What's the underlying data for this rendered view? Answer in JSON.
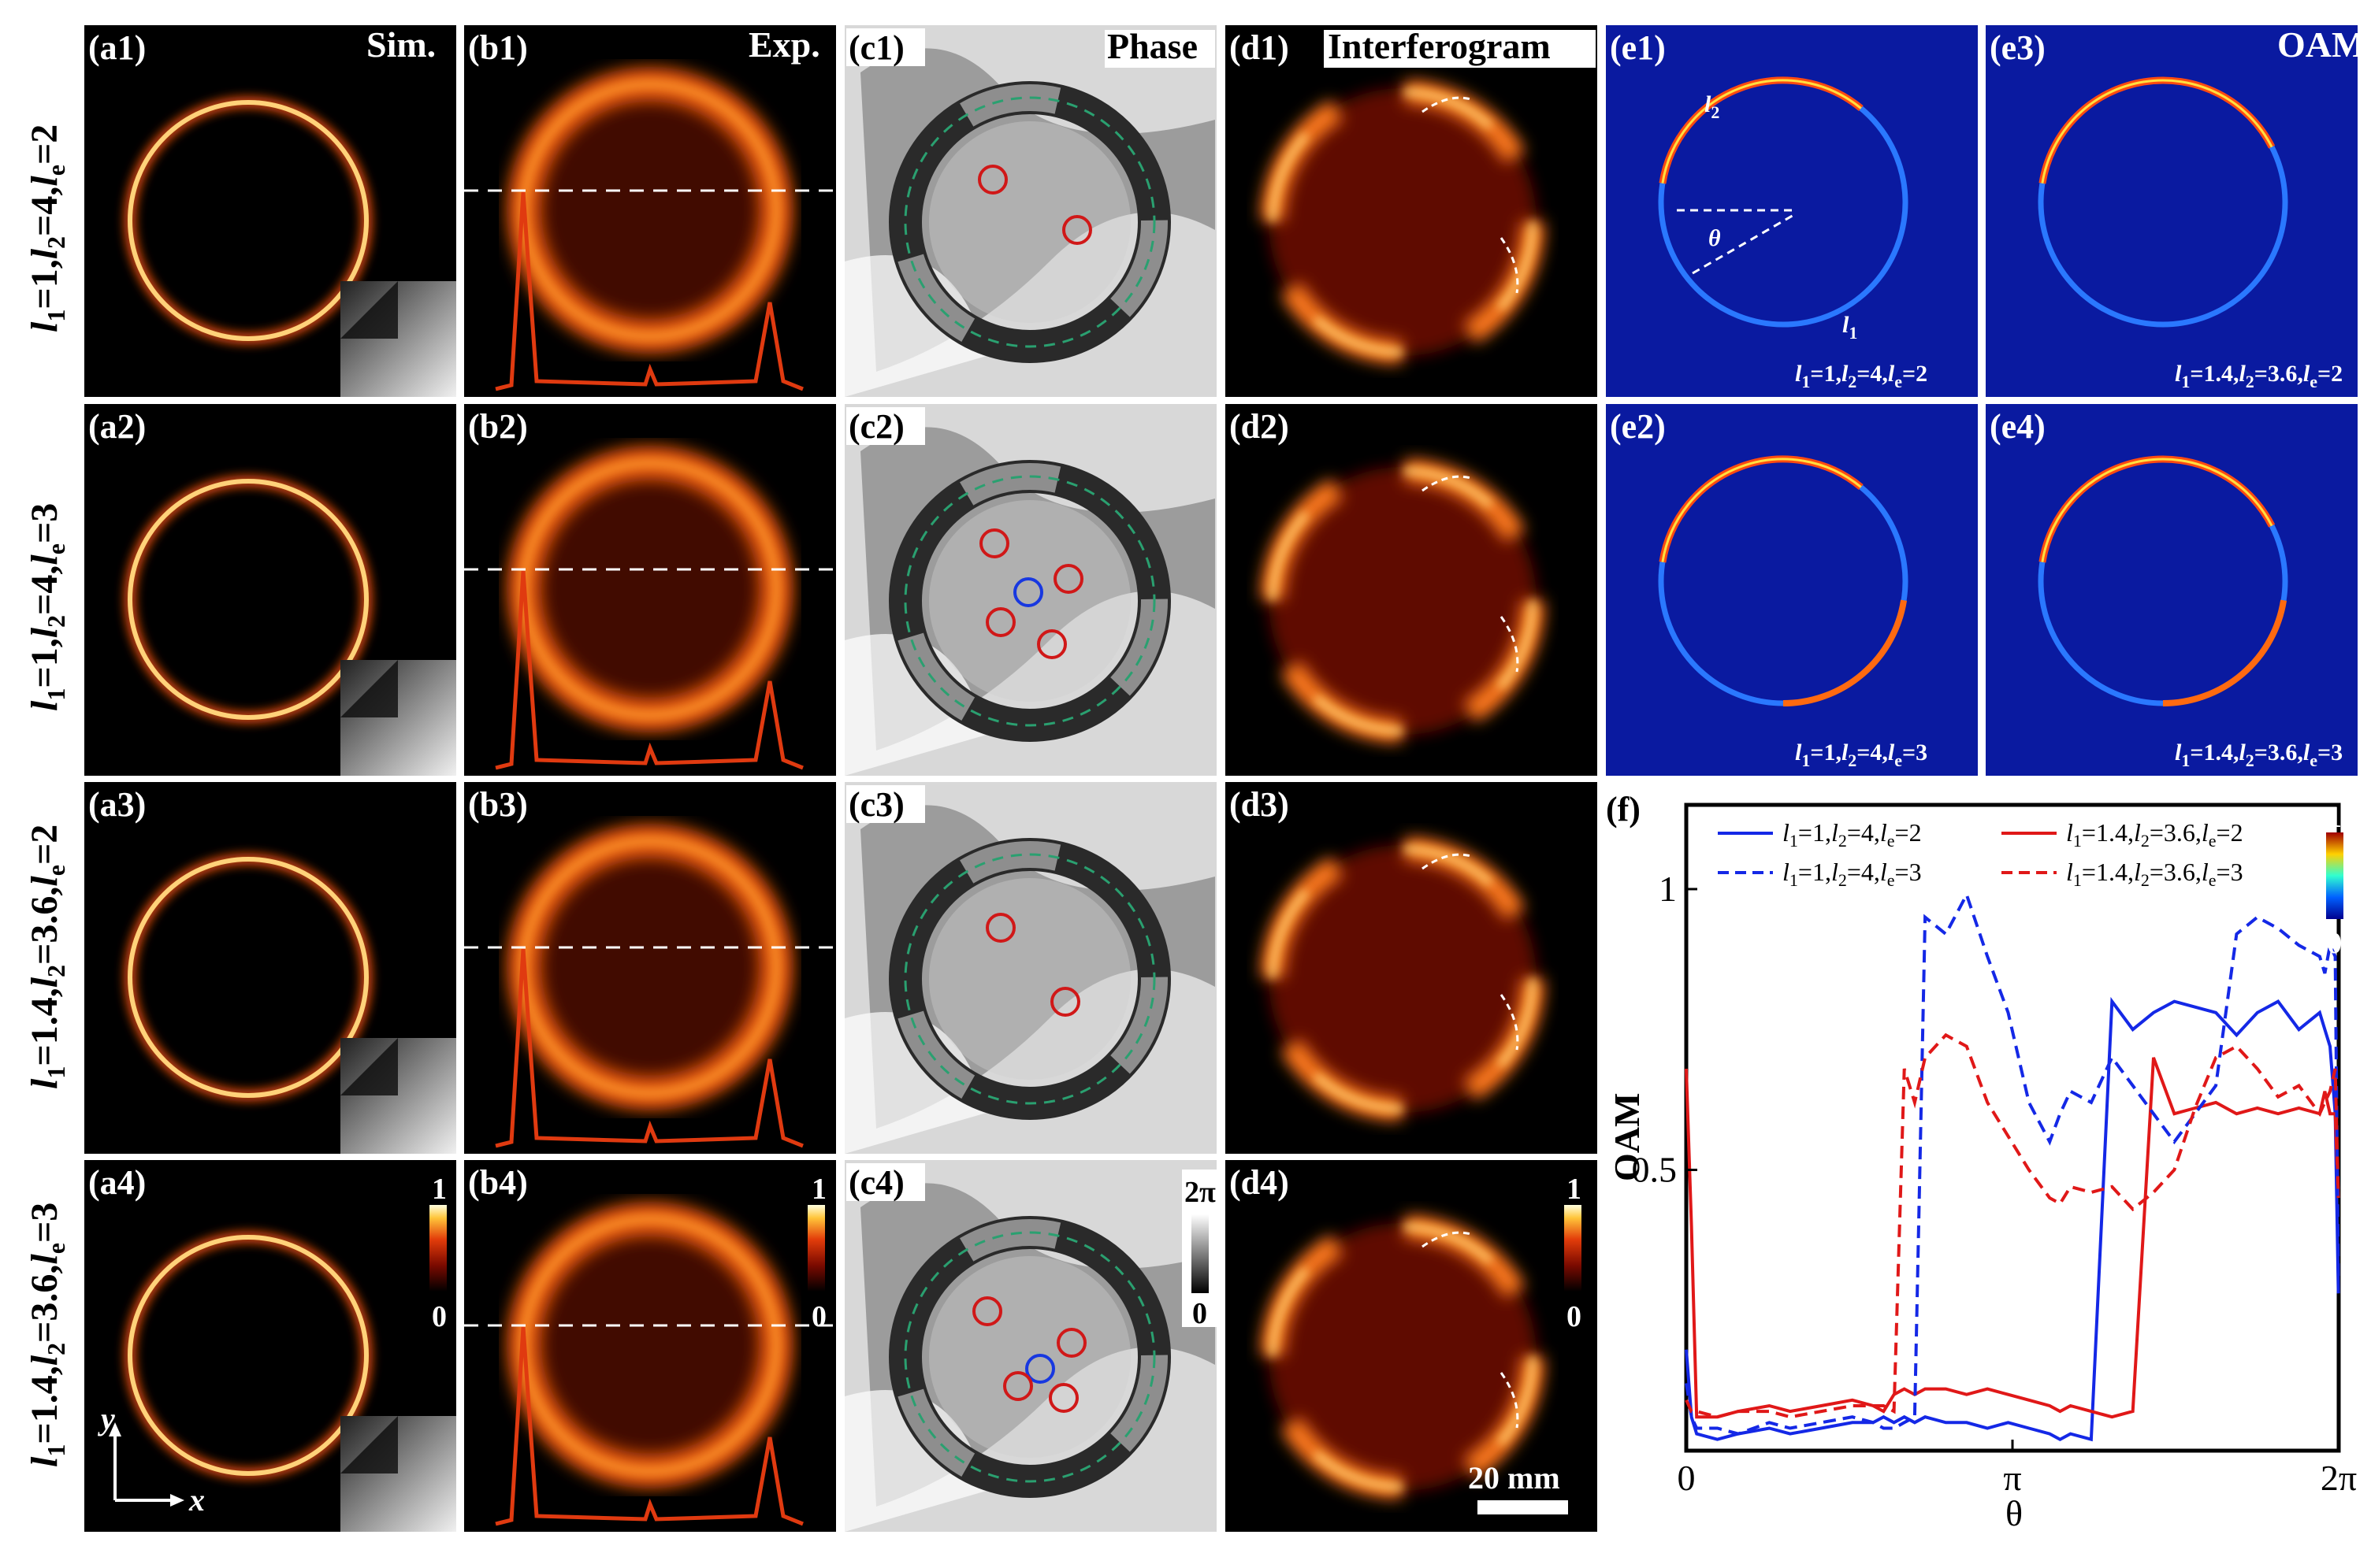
{
  "figure": {
    "column_headers": [
      "Sim.",
      "Exp.",
      "Phase",
      "Interferogram",
      "OAM"
    ],
    "row_labels": [
      {
        "l1": "1",
        "l2": "4",
        "le": "2"
      },
      {
        "l1": "1",
        "l2": "4",
        "le": "3"
      },
      {
        "l1": "1.4",
        "l2": "3.6",
        "le": "2"
      },
      {
        "l1": "1.4",
        "l2": "3.6",
        "le": "3"
      }
    ],
    "panels": {
      "a": [
        "(a1)",
        "(a2)",
        "(a3)",
        "(a4)"
      ],
      "b": [
        "(b1)",
        "(b2)",
        "(b3)",
        "(b4)"
      ],
      "c": [
        "(c1)",
        "(c2)",
        "(c3)",
        "(c4)"
      ],
      "d": [
        "(d1)",
        "(d2)",
        "(d3)",
        "(d4)"
      ],
      "e": [
        "(e1)",
        "(e3)",
        "(e2)",
        "(e4)"
      ],
      "f": "(f)"
    },
    "e_captions": [
      {
        "l1": "1",
        "l2": "4",
        "le": "2"
      },
      {
        "l1": "1.4",
        "l2": "3.6",
        "le": "2"
      },
      {
        "l1": "1",
        "l2": "4",
        "le": "3"
      },
      {
        "l1": "1.4",
        "l2": "3.6",
        "le": "3"
      }
    ],
    "e1_annotations": {
      "l2": "l2",
      "l1": "l1",
      "theta": "θ"
    },
    "colorbars": {
      "intensity": {
        "max": "1",
        "min": "0"
      },
      "phase": {
        "max": "2π",
        "min": "0"
      }
    },
    "scale_bar": "20 mm",
    "axes_glyph": {
      "x": "x",
      "y": "y"
    },
    "colors": {
      "blue_curve": "#1428e6",
      "red_curve": "#e01818",
      "phase_circle_red": "#d01818",
      "phase_circle_blue": "#1838e0",
      "oam_background": "#0a1aa0",
      "dash_green": "#2aa070"
    }
  },
  "chart_data": {
    "type": "line",
    "title": "",
    "xlabel": "θ",
    "ylabel": "OAM",
    "xlim": [
      0,
      6.2832
    ],
    "ylim": [
      0,
      1.15
    ],
    "xticks": [
      "0",
      "π",
      "2π"
    ],
    "yticks": [
      "0.5",
      "1"
    ],
    "legend_position": "top",
    "x": [
      0,
      0.05,
      0.1,
      0.3,
      0.5,
      0.8,
      1.0,
      1.3,
      1.6,
      1.8,
      1.9,
      2.0,
      2.1,
      2.2,
      2.3,
      2.5,
      2.7,
      2.9,
      3.1,
      3.3,
      3.5,
      3.6,
      3.7,
      3.9,
      4.1,
      4.3,
      4.5,
      4.7,
      4.9,
      5.1,
      5.3,
      5.5,
      5.7,
      5.9,
      6.1,
      6.15,
      6.2,
      6.25,
      6.28
    ],
    "series": [
      {
        "name": "l1=1,l2=4,le=2",
        "style": "solid",
        "color": "#1428e6",
        "values": [
          0.18,
          0.06,
          0.03,
          0.02,
          0.03,
          0.04,
          0.03,
          0.04,
          0.05,
          0.05,
          0.06,
          0.05,
          0.06,
          0.05,
          0.06,
          0.05,
          0.05,
          0.04,
          0.05,
          0.04,
          0.03,
          0.02,
          0.03,
          0.02,
          0.8,
          0.75,
          0.78,
          0.8,
          0.79,
          0.78,
          0.74,
          0.78,
          0.8,
          0.75,
          0.78,
          0.75,
          0.72,
          0.6,
          0.28
        ]
      },
      {
        "name": "l1=1.4,l2=3.6,le=2",
        "style": "solid",
        "color": "#e01818",
        "values": [
          0.68,
          0.4,
          0.06,
          0.06,
          0.07,
          0.08,
          0.07,
          0.08,
          0.09,
          0.08,
          0.07,
          0.1,
          0.11,
          0.1,
          0.11,
          0.11,
          0.1,
          0.11,
          0.1,
          0.09,
          0.08,
          0.07,
          0.08,
          0.07,
          0.06,
          0.07,
          0.7,
          0.6,
          0.61,
          0.62,
          0.6,
          0.61,
          0.6,
          0.61,
          0.6,
          0.64,
          0.6,
          0.6,
          0.45
        ]
      },
      {
        "name": "l1=1,l2=4,le=3",
        "style": "dashed",
        "color": "#1428e6",
        "values": [
          0.12,
          0.06,
          0.04,
          0.04,
          0.03,
          0.05,
          0.04,
          0.05,
          0.06,
          0.05,
          0.04,
          0.04,
          0.05,
          0.06,
          0.95,
          0.92,
          0.99,
          0.88,
          0.78,
          0.62,
          0.55,
          0.6,
          0.64,
          0.62,
          0.7,
          0.65,
          0.6,
          0.55,
          0.6,
          0.65,
          0.92,
          0.95,
          0.93,
          0.9,
          0.88,
          0.85,
          0.9,
          0.88,
          0.3
        ]
      },
      {
        "name": "l1=1.4,l2=3.6,le=3",
        "style": "dashed",
        "color": "#e01818",
        "values": [
          0.09,
          0.07,
          0.07,
          0.06,
          0.07,
          0.07,
          0.06,
          0.07,
          0.08,
          0.08,
          0.08,
          0.07,
          0.68,
          0.62,
          0.7,
          0.74,
          0.72,
          0.62,
          0.56,
          0.5,
          0.45,
          0.44,
          0.47,
          0.46,
          0.47,
          0.43,
          0.46,
          0.5,
          0.61,
          0.7,
          0.72,
          0.68,
          0.63,
          0.65,
          0.6,
          0.62,
          0.64,
          0.68,
          0.45
        ]
      }
    ]
  }
}
